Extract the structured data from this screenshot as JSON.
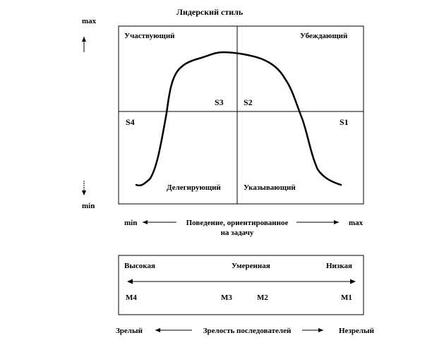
{
  "title": "Лидерский стиль",
  "y_axis": {
    "max_label": "max",
    "min_label": "min"
  },
  "quadrants": {
    "top_left": "Участвующий",
    "top_right": "Убеждающий",
    "bottom_left": "Делегирующий",
    "bottom_right": "Указывающий"
  },
  "styles": {
    "s1": "S1",
    "s2": "S2",
    "s3": "S3",
    "s4": "S4"
  },
  "x_axis": {
    "min_label": "min",
    "max_label": "max",
    "label_line1": "Поведение, ориентированное",
    "label_line2": "на задачу"
  },
  "maturity_box": {
    "high": "Высокая",
    "moderate": "Умеренная",
    "low": "Низкая",
    "m4": "M4",
    "m3": "M3",
    "m2": "M2",
    "m1": "M1"
  },
  "maturity_axis": {
    "left_label": "Зрелый",
    "center_label": "Зрелость последователей",
    "right_label": "Незрелый"
  }
}
